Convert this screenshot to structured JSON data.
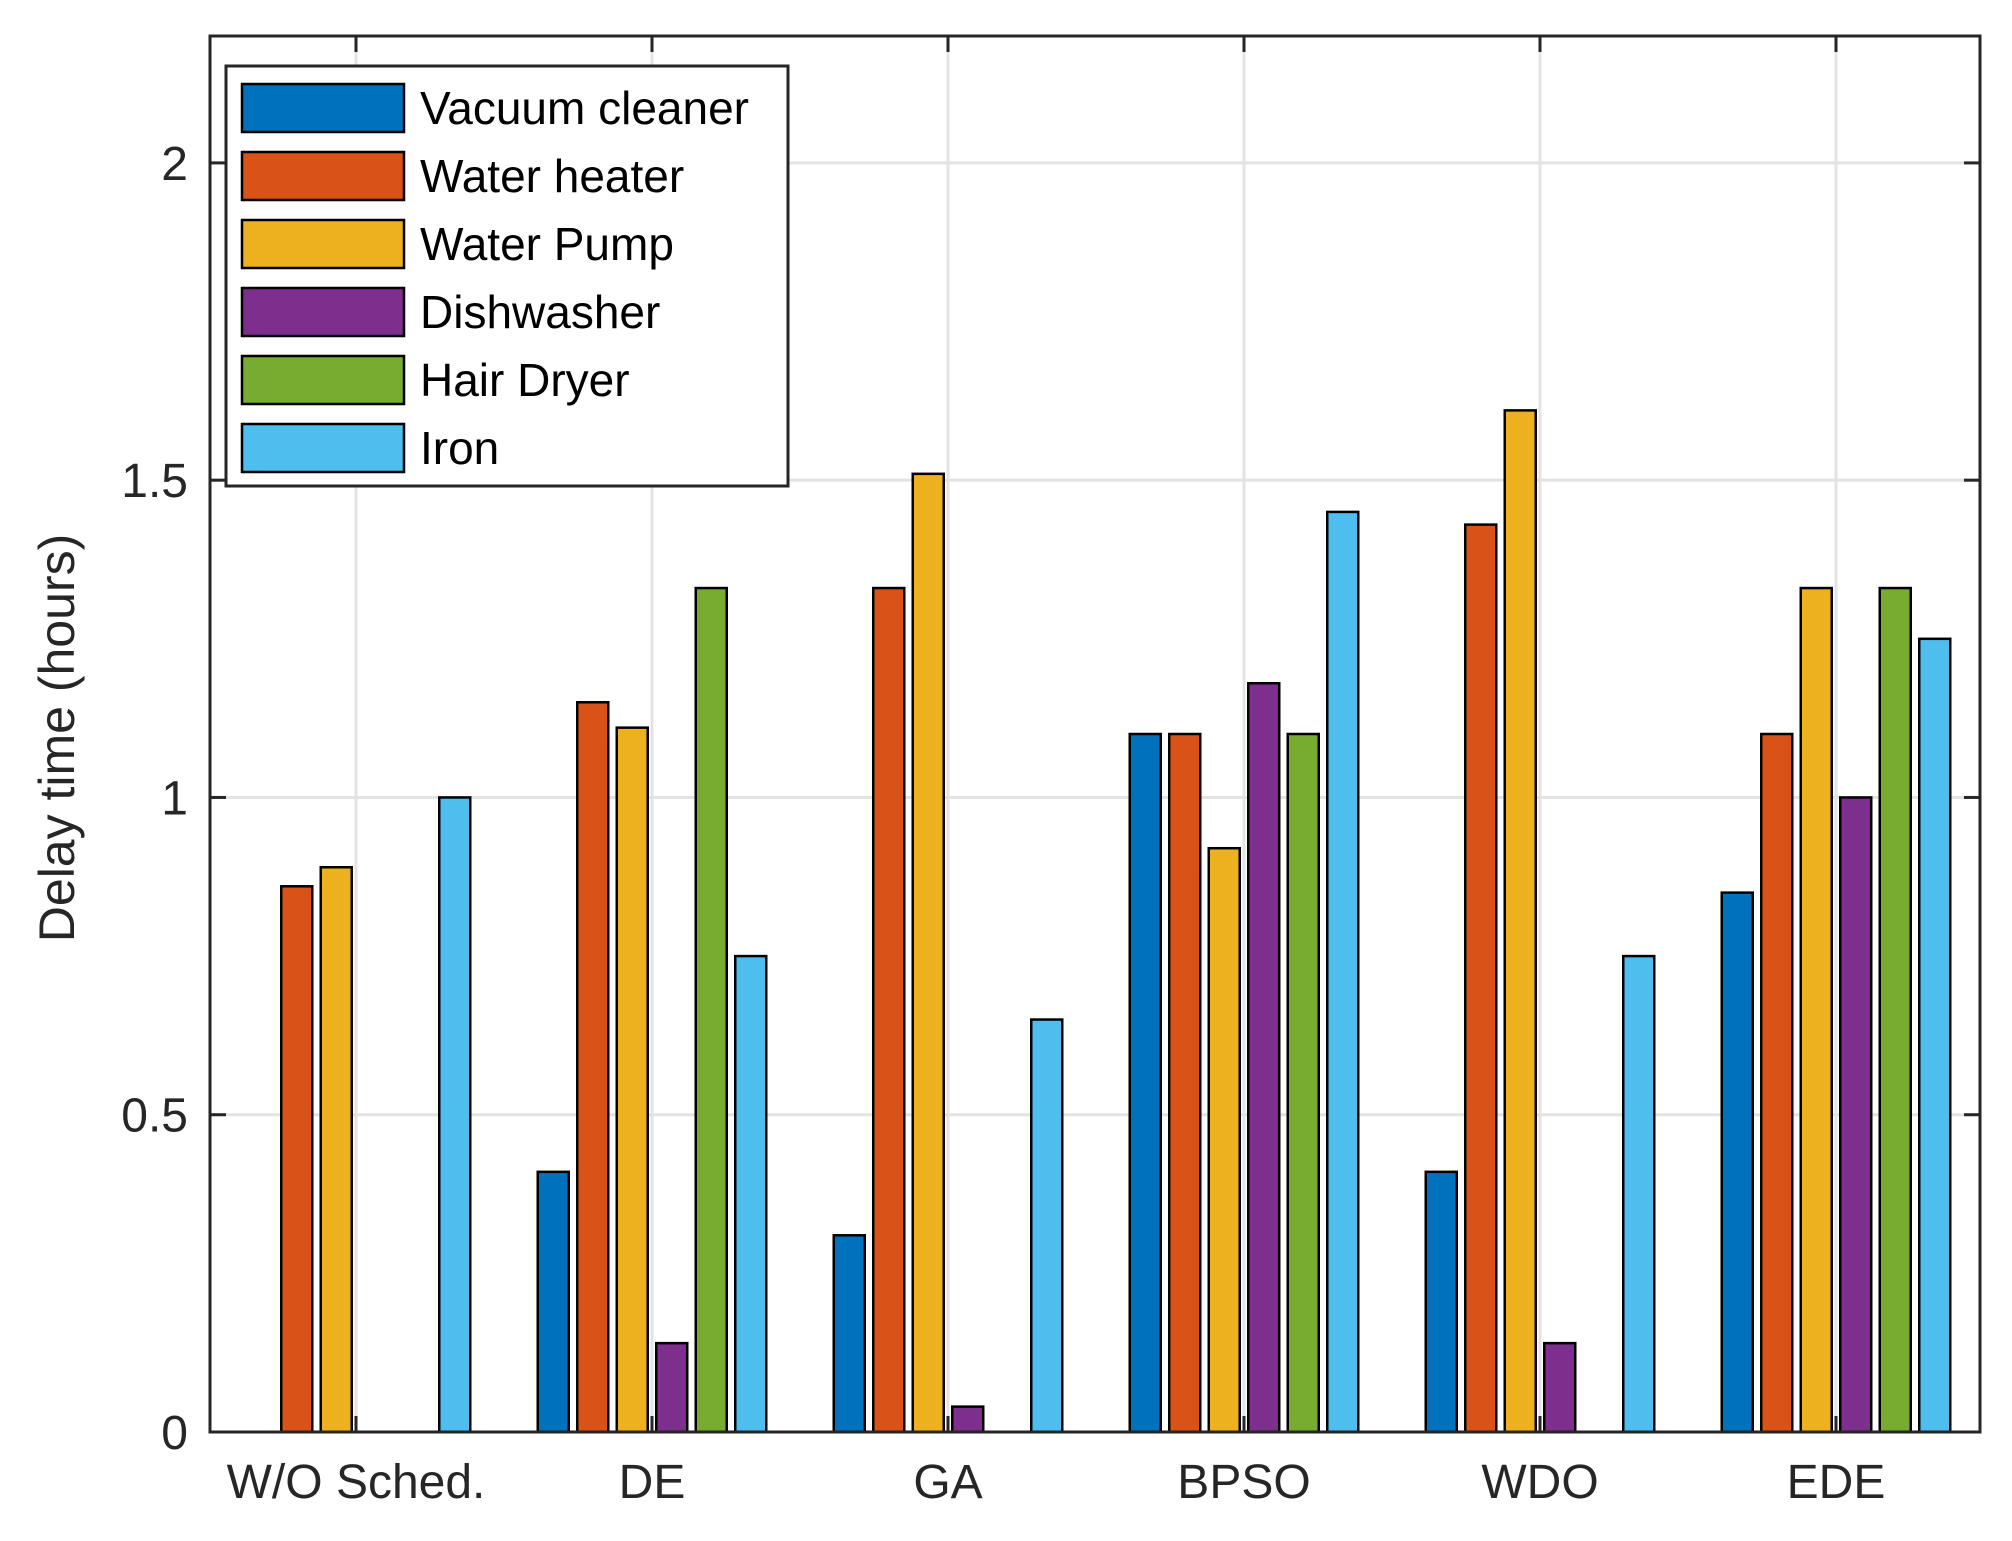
{
  "chart_data": {
    "type": "bar",
    "title": "",
    "xlabel": "",
    "ylabel": "Delay time (hours)",
    "ylim": [
      0,
      2.2
    ],
    "yticks": [
      0,
      0.5,
      1,
      1.5,
      2
    ],
    "ytick_labels": [
      "0",
      "0.5",
      "1",
      "1.5",
      "2"
    ],
    "grid": true,
    "legend_position": "top-left",
    "categories": [
      "W/O Sched.",
      "DE",
      "GA",
      "BPSO",
      "WDO",
      "EDE"
    ],
    "series": [
      {
        "name": "Vacuum cleaner",
        "color": "#0072BD",
        "values": [
          0,
          0.41,
          0.31,
          1.1,
          0.41,
          0.85
        ]
      },
      {
        "name": "Water heater",
        "color": "#D95319",
        "values": [
          0.86,
          1.15,
          1.33,
          1.1,
          1.43,
          1.1
        ]
      },
      {
        "name": "Water Pump",
        "color": "#EDB120",
        "values": [
          0.89,
          1.11,
          1.51,
          0.92,
          1.61,
          1.33
        ]
      },
      {
        "name": "Dishwasher",
        "color": "#7E2F8E",
        "values": [
          0,
          0.14,
          0.04,
          1.18,
          0.14,
          1.0
        ]
      },
      {
        "name": "Hair Dryer",
        "color": "#77AC30",
        "values": [
          0,
          1.33,
          0,
          1.1,
          0,
          1.33
        ]
      },
      {
        "name": "Iron",
        "color": "#4DBEEE",
        "values": [
          1.0,
          0.75,
          0.65,
          1.45,
          0.75,
          1.25
        ]
      }
    ]
  }
}
